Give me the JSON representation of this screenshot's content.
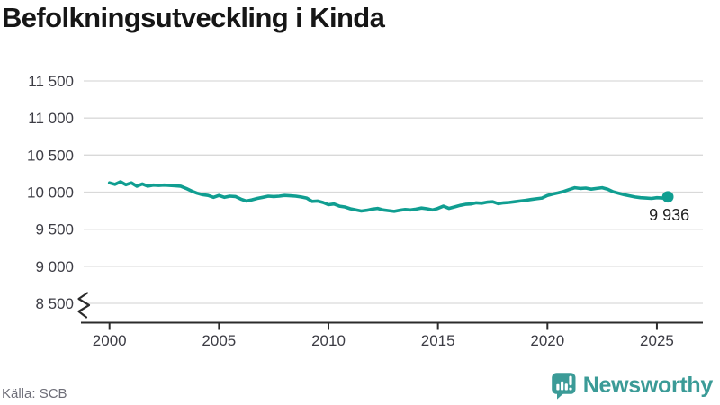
{
  "title": "Befolkningsutveckling i Kinda",
  "source": "Källa: SCB",
  "logo": {
    "brand": "Newsworthy",
    "icon": "newsworthy-speech-bubble-bar-chart-icon"
  },
  "colors": {
    "line": "#109e91",
    "grid": "#d9d9d9",
    "axis": "#2b2b2b",
    "tick_text": "#3c3c44",
    "title_text": "#161616",
    "source_text": "#6e6e78",
    "logo_teal": "#3b9b97",
    "end_label_text": "#1e1e1e",
    "background": "#ffffff"
  },
  "chart_data": {
    "type": "line",
    "title": "Befolkningsutveckling i Kinda",
    "xlabel": "",
    "ylabel": "",
    "legend": "none",
    "grid": "horizontal-only",
    "axis_break_at_bottom": true,
    "ylim_display": [
      8500,
      11500
    ],
    "yticks": [
      11500,
      11000,
      10500,
      10000,
      9500,
      9000,
      8500
    ],
    "ytick_labels": [
      "11 500",
      "11 000",
      "10 500",
      "10 000",
      "9 500",
      "9 000",
      "8 500"
    ],
    "xticks": [
      2000,
      2005,
      2010,
      2015,
      2020,
      2025
    ],
    "xtick_labels": [
      "2000",
      "2005",
      "2010",
      "2015",
      "2020",
      "2025"
    ],
    "end_point_value": 9936,
    "end_point_label": "9 936",
    "x": [
      2000,
      2000.25,
      2000.5,
      2000.75,
      2001,
      2001.25,
      2001.5,
      2001.75,
      2002,
      2002.25,
      2002.5,
      2002.75,
      2003,
      2003.25,
      2003.5,
      2003.75,
      2004,
      2004.25,
      2004.5,
      2004.75,
      2005,
      2005.25,
      2005.5,
      2005.75,
      2006,
      2006.25,
      2006.5,
      2006.75,
      2007,
      2007.25,
      2007.5,
      2007.75,
      2008,
      2008.25,
      2008.5,
      2008.75,
      2009,
      2009.25,
      2009.5,
      2009.75,
      2010,
      2010.25,
      2010.5,
      2010.75,
      2011,
      2011.25,
      2011.5,
      2011.75,
      2012,
      2012.25,
      2012.5,
      2012.75,
      2013,
      2013.25,
      2013.5,
      2013.75,
      2014,
      2014.25,
      2014.5,
      2014.75,
      2015,
      2015.25,
      2015.5,
      2015.75,
      2016,
      2016.25,
      2016.5,
      2016.75,
      2017,
      2017.25,
      2017.5,
      2017.75,
      2018,
      2018.25,
      2018.5,
      2018.75,
      2019,
      2019.25,
      2019.5,
      2019.75,
      2020,
      2020.25,
      2020.5,
      2020.75,
      2021,
      2021.25,
      2021.5,
      2021.75,
      2022,
      2022.25,
      2022.5,
      2022.75,
      2023,
      2023.25,
      2023.5,
      2023.75,
      2024,
      2024.25,
      2024.5,
      2024.75,
      2025,
      2025.25,
      2025.5
    ],
    "values": [
      10125,
      10105,
      10140,
      10100,
      10125,
      10080,
      10110,
      10080,
      10095,
      10090,
      10095,
      10090,
      10085,
      10080,
      10050,
      10015,
      9985,
      9965,
      9955,
      9930,
      9955,
      9930,
      9945,
      9940,
      9905,
      9880,
      9895,
      9915,
      9930,
      9945,
      9940,
      9945,
      9955,
      9950,
      9945,
      9935,
      9920,
      9875,
      9880,
      9860,
      9830,
      9840,
      9810,
      9800,
      9775,
      9760,
      9745,
      9755,
      9770,
      9780,
      9760,
      9750,
      9740,
      9755,
      9765,
      9760,
      9770,
      9785,
      9775,
      9760,
      9780,
      9810,
      9780,
      9800,
      9820,
      9835,
      9840,
      9855,
      9850,
      9865,
      9870,
      9845,
      9855,
      9860,
      9870,
      9880,
      9890,
      9900,
      9910,
      9920,
      9955,
      9975,
      9990,
      10010,
      10035,
      10060,
      10050,
      10055,
      10040,
      10050,
      10060,
      10040,
      10005,
      9985,
      9965,
      9950,
      9935,
      9925,
      9920,
      9915,
      9925,
      9920,
      9936
    ]
  }
}
